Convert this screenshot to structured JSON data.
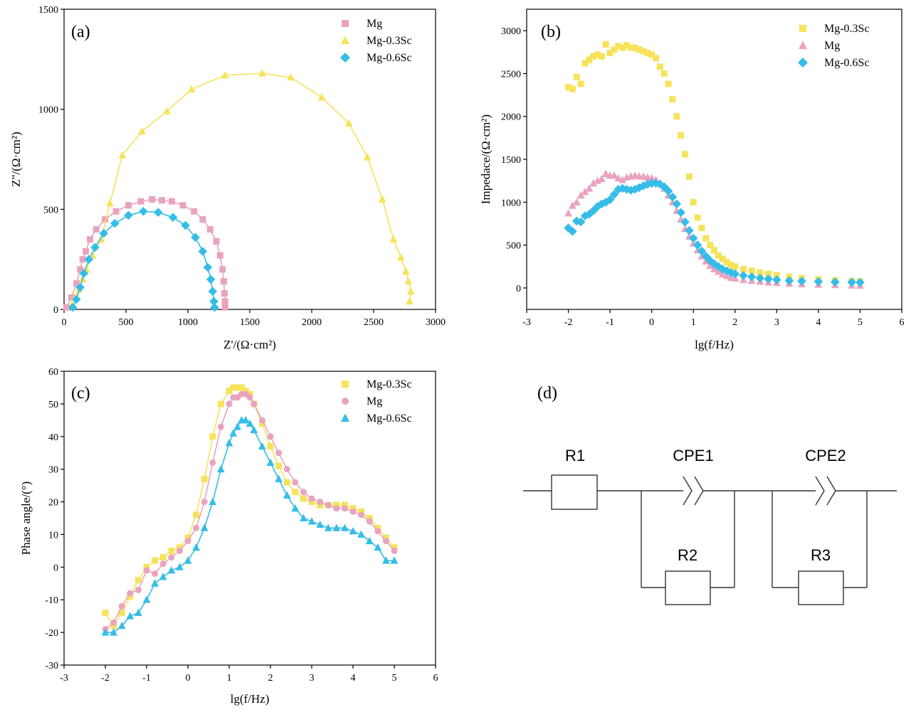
{
  "colors": {
    "Mg": "#e9a3bf",
    "Mg-0.3Sc": "#f6e35b",
    "Mg-0.6Sc": "#35bde8"
  },
  "chart_data": [
    {
      "id": "a",
      "type": "scatter",
      "panel_label": "(a)",
      "xlabel": "Z'/(Ω·cm²)",
      "ylabel": "Z\"/(Ω·cm²)",
      "xlim": [
        0,
        3000
      ],
      "ylim": [
        0,
        1500
      ],
      "xticks": [
        0,
        500,
        1000,
        1500,
        2000,
        2500,
        3000
      ],
      "yticks": [
        0,
        500,
        1000,
        1500
      ],
      "legend": [
        "Mg",
        "Mg-0.3Sc",
        "Mg-0.6Sc"
      ],
      "legend_position": "top-right",
      "series": [
        {
          "name": "Mg",
          "marker": "square",
          "fit_line": true,
          "x": [
            20,
            60,
            100,
            130,
            150,
            175,
            210,
            260,
            330,
            420,
            520,
            620,
            710,
            790,
            870,
            960,
            1050,
            1120,
            1180,
            1230,
            1260,
            1280,
            1290,
            1295,
            1300,
            1300
          ],
          "y": [
            10,
            60,
            130,
            200,
            250,
            290,
            350,
            400,
            450,
            490,
            520,
            540,
            550,
            545,
            540,
            520,
            490,
            450,
            400,
            340,
            270,
            200,
            140,
            80,
            40,
            10
          ]
        },
        {
          "name": "Mg-0.3Sc",
          "marker": "triangle",
          "fit_line": true,
          "x": [
            60,
            90,
            120,
            150,
            180,
            230,
            300,
            370,
            470,
            630,
            830,
            1030,
            1300,
            1600,
            1830,
            2080,
            2300,
            2450,
            2570,
            2660,
            2720,
            2760,
            2780,
            2800,
            2790
          ],
          "y": [
            20,
            60,
            100,
            150,
            200,
            270,
            350,
            530,
            770,
            890,
            990,
            1100,
            1170,
            1180,
            1160,
            1060,
            930,
            760,
            550,
            350,
            260,
            190,
            140,
            90,
            40
          ]
        },
        {
          "name": "Mg-0.6Sc",
          "marker": "diamond",
          "fit_line": true,
          "x": [
            70,
            100,
            130,
            160,
            200,
            250,
            320,
            410,
            520,
            640,
            760,
            880,
            980,
            1060,
            1120,
            1160,
            1185,
            1200,
            1210,
            1215
          ],
          "y": [
            10,
            50,
            110,
            180,
            250,
            310,
            380,
            430,
            470,
            490,
            485,
            460,
            420,
            360,
            290,
            210,
            150,
            90,
            40,
            10
          ]
        }
      ]
    },
    {
      "id": "b",
      "type": "scatter",
      "panel_label": "(b)",
      "xlabel": "lg(f/Hz)",
      "ylabel": "Impedace/(Ω·cm²)",
      "xlim": [
        -3,
        6
      ],
      "ylim": [
        -250,
        3250
      ],
      "xticks": [
        -3,
        -2,
        -1,
        0,
        1,
        2,
        3,
        4,
        5,
        6
      ],
      "yticks": [
        0,
        500,
        1000,
        1500,
        2000,
        2500,
        3000
      ],
      "legend": [
        "Mg-0.3Sc",
        "Mg",
        "Mg-0.6Sc"
      ],
      "legend_position": "top-right",
      "series": [
        {
          "name": "Mg-0.3Sc",
          "marker": "square",
          "fit_line": false,
          "x": [
            -2,
            -1.9,
            -1.8,
            -1.7,
            -1.6,
            -1.5,
            -1.4,
            -1.3,
            -1.2,
            -1.1,
            -1,
            -0.9,
            -0.8,
            -0.7,
            -0.6,
            -0.5,
            -0.4,
            -0.3,
            -0.2,
            -0.1,
            0,
            0.1,
            0.2,
            0.3,
            0.4,
            0.5,
            0.6,
            0.7,
            0.8,
            0.9,
            1,
            1.1,
            1.2,
            1.3,
            1.4,
            1.5,
            1.6,
            1.7,
            1.8,
            1.9,
            2,
            2.2,
            2.4,
            2.6,
            2.8,
            3,
            3.3,
            3.6,
            4,
            4.4,
            4.8,
            5
          ],
          "y": [
            2340,
            2320,
            2460,
            2380,
            2620,
            2660,
            2700,
            2720,
            2700,
            2840,
            2740,
            2780,
            2820,
            2800,
            2830,
            2800,
            2800,
            2780,
            2760,
            2740,
            2720,
            2680,
            2580,
            2500,
            2380,
            2200,
            2000,
            1780,
            1560,
            1300,
            1000,
            820,
            700,
            580,
            500,
            440,
            380,
            340,
            300,
            270,
            250,
            220,
            200,
            180,
            165,
            150,
            130,
            115,
            100,
            90,
            80,
            75
          ]
        },
        {
          "name": "Mg",
          "marker": "triangle",
          "fit_line": false,
          "x": [
            -2,
            -1.9,
            -1.8,
            -1.7,
            -1.6,
            -1.5,
            -1.4,
            -1.3,
            -1.2,
            -1.1,
            -1,
            -0.9,
            -0.8,
            -0.7,
            -0.6,
            -0.5,
            -0.4,
            -0.3,
            -0.2,
            -0.1,
            0,
            0.1,
            0.2,
            0.3,
            0.4,
            0.5,
            0.6,
            0.7,
            0.8,
            0.9,
            1,
            1.1,
            1.2,
            1.3,
            1.4,
            1.5,
            1.6,
            1.7,
            1.8,
            1.9,
            2,
            2.2,
            2.4,
            2.6,
            2.8,
            3,
            3.3,
            3.6,
            4,
            4.4,
            4.8,
            5
          ],
          "y": [
            870,
            960,
            1000,
            1080,
            1120,
            1160,
            1220,
            1250,
            1270,
            1330,
            1310,
            1310,
            1280,
            1260,
            1290,
            1300,
            1310,
            1300,
            1300,
            1290,
            1280,
            1260,
            1220,
            1160,
            1080,
            1000,
            900,
            800,
            690,
            600,
            520,
            440,
            370,
            310,
            260,
            220,
            190,
            160,
            140,
            120,
            110,
            95,
            85,
            75,
            65,
            60,
            50,
            45,
            40,
            35,
            30,
            28
          ]
        },
        {
          "name": "Mg-0.6Sc",
          "marker": "diamond",
          "fit_line": false,
          "x": [
            -2,
            -1.9,
            -1.8,
            -1.7,
            -1.6,
            -1.5,
            -1.4,
            -1.3,
            -1.2,
            -1.1,
            -1,
            -0.9,
            -0.8,
            -0.7,
            -0.6,
            -0.5,
            -0.4,
            -0.3,
            -0.2,
            -0.1,
            0,
            0.1,
            0.2,
            0.3,
            0.4,
            0.5,
            0.6,
            0.7,
            0.8,
            0.9,
            1,
            1.1,
            1.2,
            1.3,
            1.4,
            1.5,
            1.6,
            1.7,
            1.8,
            1.9,
            2,
            2.2,
            2.4,
            2.6,
            2.8,
            3,
            3.3,
            3.6,
            4,
            4.4,
            4.8,
            5
          ],
          "y": [
            700,
            660,
            780,
            770,
            840,
            860,
            900,
            950,
            980,
            1000,
            1030,
            1090,
            1150,
            1160,
            1150,
            1140,
            1150,
            1170,
            1190,
            1210,
            1220,
            1220,
            1210,
            1180,
            1130,
            1060,
            980,
            880,
            770,
            670,
            580,
            500,
            430,
            370,
            320,
            280,
            250,
            220,
            200,
            180,
            165,
            145,
            130,
            115,
            105,
            95,
            85,
            80,
            75,
            70,
            68,
            65
          ]
        }
      ]
    },
    {
      "id": "c",
      "type": "scatter",
      "panel_label": "(c)",
      "xlabel": "lg(f/Hz)",
      "ylabel": "Phase angle/(°)",
      "xlim": [
        -3,
        6
      ],
      "ylim": [
        -30,
        60
      ],
      "xticks": [
        -3,
        -2,
        -1,
        0,
        1,
        2,
        3,
        4,
        5,
        6
      ],
      "yticks": [
        -30,
        -20,
        -10,
        0,
        10,
        20,
        30,
        40,
        50,
        60
      ],
      "legend": [
        "Mg-0.3Sc",
        "Mg",
        "Mg-0.6Sc"
      ],
      "legend_position": "top-right",
      "series": [
        {
          "name": "Mg-0.3Sc",
          "marker": "square",
          "fit_line": true,
          "x": [
            -2,
            -1.8,
            -1.6,
            -1.4,
            -1.2,
            -1,
            -0.8,
            -0.6,
            -0.4,
            -0.2,
            0,
            0.2,
            0.4,
            0.6,
            0.8,
            1,
            1.1,
            1.2,
            1.3,
            1.4,
            1.5,
            1.6,
            1.8,
            2,
            2.2,
            2.4,
            2.6,
            2.8,
            3,
            3.2,
            3.4,
            3.6,
            3.8,
            4,
            4.2,
            4.4,
            4.6,
            4.8,
            5
          ],
          "y": [
            -14,
            -18,
            -14,
            -9,
            -4,
            0,
            2,
            3,
            5,
            6,
            9,
            16,
            27,
            40,
            50,
            54,
            55,
            55,
            55,
            54,
            53,
            50,
            44,
            37,
            31,
            26,
            23,
            21,
            20,
            19,
            19,
            19,
            19,
            18,
            17,
            15,
            12,
            9,
            6
          ]
        },
        {
          "name": "Mg",
          "marker": "circle",
          "fit_line": true,
          "x": [
            -2,
            -1.8,
            -1.6,
            -1.4,
            -1.2,
            -1,
            -0.8,
            -0.6,
            -0.4,
            -0.2,
            0,
            0.2,
            0.4,
            0.6,
            0.8,
            1,
            1.1,
            1.2,
            1.3,
            1.4,
            1.5,
            1.6,
            1.8,
            2,
            2.2,
            2.4,
            2.6,
            2.8,
            3,
            3.2,
            3.4,
            3.6,
            3.8,
            4,
            4.2,
            4.4,
            4.6,
            4.8,
            5
          ],
          "y": [
            -19,
            -17,
            -12,
            -8,
            -7,
            -1,
            -2,
            1,
            3,
            5,
            8,
            12,
            20,
            32,
            43,
            50,
            52,
            52,
            53,
            53,
            52,
            50,
            45,
            40,
            35,
            30,
            26,
            23,
            21,
            20,
            19,
            18,
            18,
            17,
            16,
            14,
            11,
            8,
            5
          ]
        },
        {
          "name": "Mg-0.6Sc",
          "marker": "triangle",
          "fit_line": true,
          "x": [
            -2,
            -1.8,
            -1.6,
            -1.4,
            -1.2,
            -1,
            -0.8,
            -0.6,
            -0.4,
            -0.2,
            0,
            0.2,
            0.4,
            0.6,
            0.8,
            1,
            1.1,
            1.2,
            1.3,
            1.4,
            1.5,
            1.6,
            1.8,
            2,
            2.2,
            2.4,
            2.6,
            2.8,
            3,
            3.2,
            3.4,
            3.6,
            3.8,
            4,
            4.2,
            4.4,
            4.6,
            4.8,
            5
          ],
          "y": [
            -20,
            -20,
            -18,
            -15,
            -14,
            -10,
            -5,
            -3,
            -1,
            0,
            2,
            6,
            12,
            20,
            30,
            38,
            41,
            43,
            45,
            45,
            44,
            42,
            37,
            32,
            27,
            22,
            18,
            15,
            14,
            13,
            12,
            12,
            12,
            11,
            10,
            8,
            6,
            2,
            2
          ]
        }
      ]
    }
  ],
  "circuit": {
    "panel_label": "(d)",
    "r1": "R1",
    "cpe1": "CPE1",
    "cpe2": "CPE2",
    "r2": "R2",
    "r3": "R3"
  }
}
